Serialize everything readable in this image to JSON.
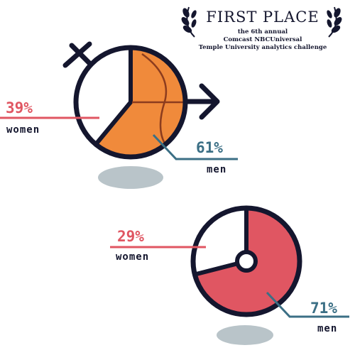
{
  "award": {
    "title": "FIRST PLACE",
    "line1": "the 6th annual",
    "line2": "Comcast NBCUniversal",
    "line3": "Temple University analytics challenge"
  },
  "colors": {
    "ink": "#14162e",
    "orange": "#f08a3b",
    "red": "#e05662",
    "teal": "#3b6f85",
    "shadow": "#b9c4c9"
  },
  "icons": [
    "female-symbol-icon",
    "male-symbol-icon",
    "basketball-icon",
    "laurel-icon"
  ],
  "chart_data": [
    {
      "type": "pie",
      "title": "",
      "categories": [
        "women",
        "men"
      ],
      "values": [
        39,
        61
      ],
      "labels": [
        "39%",
        "61%"
      ],
      "series_colors": [
        "#ffffff",
        "#f08a3b"
      ]
    },
    {
      "type": "pie",
      "title": "",
      "categories": [
        "women",
        "men"
      ],
      "values": [
        29,
        71
      ],
      "labels": [
        "29%",
        "71%"
      ],
      "series_colors": [
        "#ffffff",
        "#e05662"
      ]
    }
  ]
}
